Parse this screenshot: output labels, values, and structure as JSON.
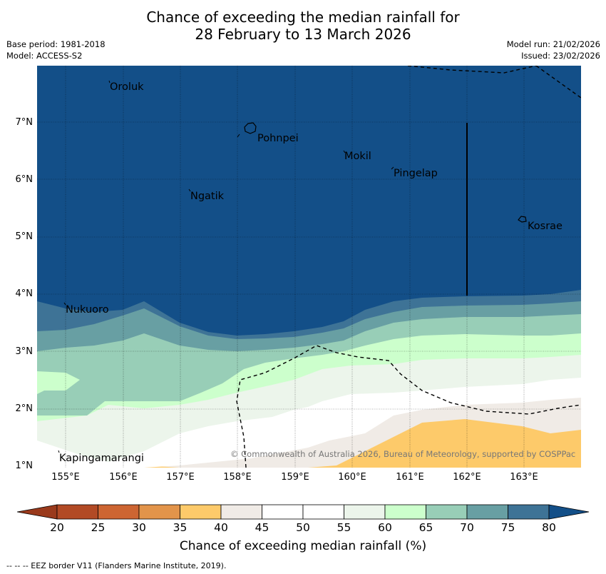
{
  "title_line1": "Chance of exceeding the median rainfall for",
  "title_line2": "28 February to 13 March 2026",
  "base_period": "Base period: 1981-2018",
  "model": "Model: ACCESS-S2",
  "model_run": "Model run: 21/02/2026",
  "issued": "Issued: 23/02/2026",
  "lat_labels": [
    "7°N",
    "6°N",
    "5°N",
    "4°N",
    "3°N",
    "2°N",
    "1°N"
  ],
  "lat_values": [
    7,
    6,
    5,
    4,
    3,
    2,
    1
  ],
  "lon_labels": [
    "155°E",
    "156°E",
    "157°E",
    "158°E",
    "159°E",
    "160°E",
    "161°E",
    "162°E",
    "163°E"
  ],
  "lon_values": [
    155,
    156,
    157,
    158,
    159,
    160,
    161,
    162,
    163
  ],
  "places": [
    {
      "name": "Oroluk"
    },
    {
      "name": "Pohnpei"
    },
    {
      "name": "Mokil"
    },
    {
      "name": "Pingelap"
    },
    {
      "name": "Ngatik"
    },
    {
      "name": "Kosrae"
    },
    {
      "name": "Nukuoro"
    },
    {
      "name": "Kapingamarangi"
    }
  ],
  "copyright": "© Commonwealth of Australia 2026, Bureau of Meteorology, supported by COSPPac",
  "colorbar": {
    "label": "Chance of exceeding median rainfall (%)",
    "ticks": [
      "20",
      "25",
      "30",
      "35",
      "40",
      "45",
      "50",
      "55",
      "60",
      "65",
      "70",
      "75",
      "80"
    ],
    "colors": [
      "#b24a25",
      "#cd6532",
      "#e2944a",
      "#fdca6a",
      "#f0ebe6",
      "#ffffff",
      "#ffffff",
      "#ecf5eb",
      "#ccffcc",
      "#98ceb7",
      "#689fa3",
      "#3e7396",
      "#134f88"
    ]
  },
  "footnote": "--  --  -- EEZ border V11 (Flanders Marine Institute, 2019).",
  "colors": {
    "deep_blue": "#134f88",
    "grid": "#000000"
  }
}
